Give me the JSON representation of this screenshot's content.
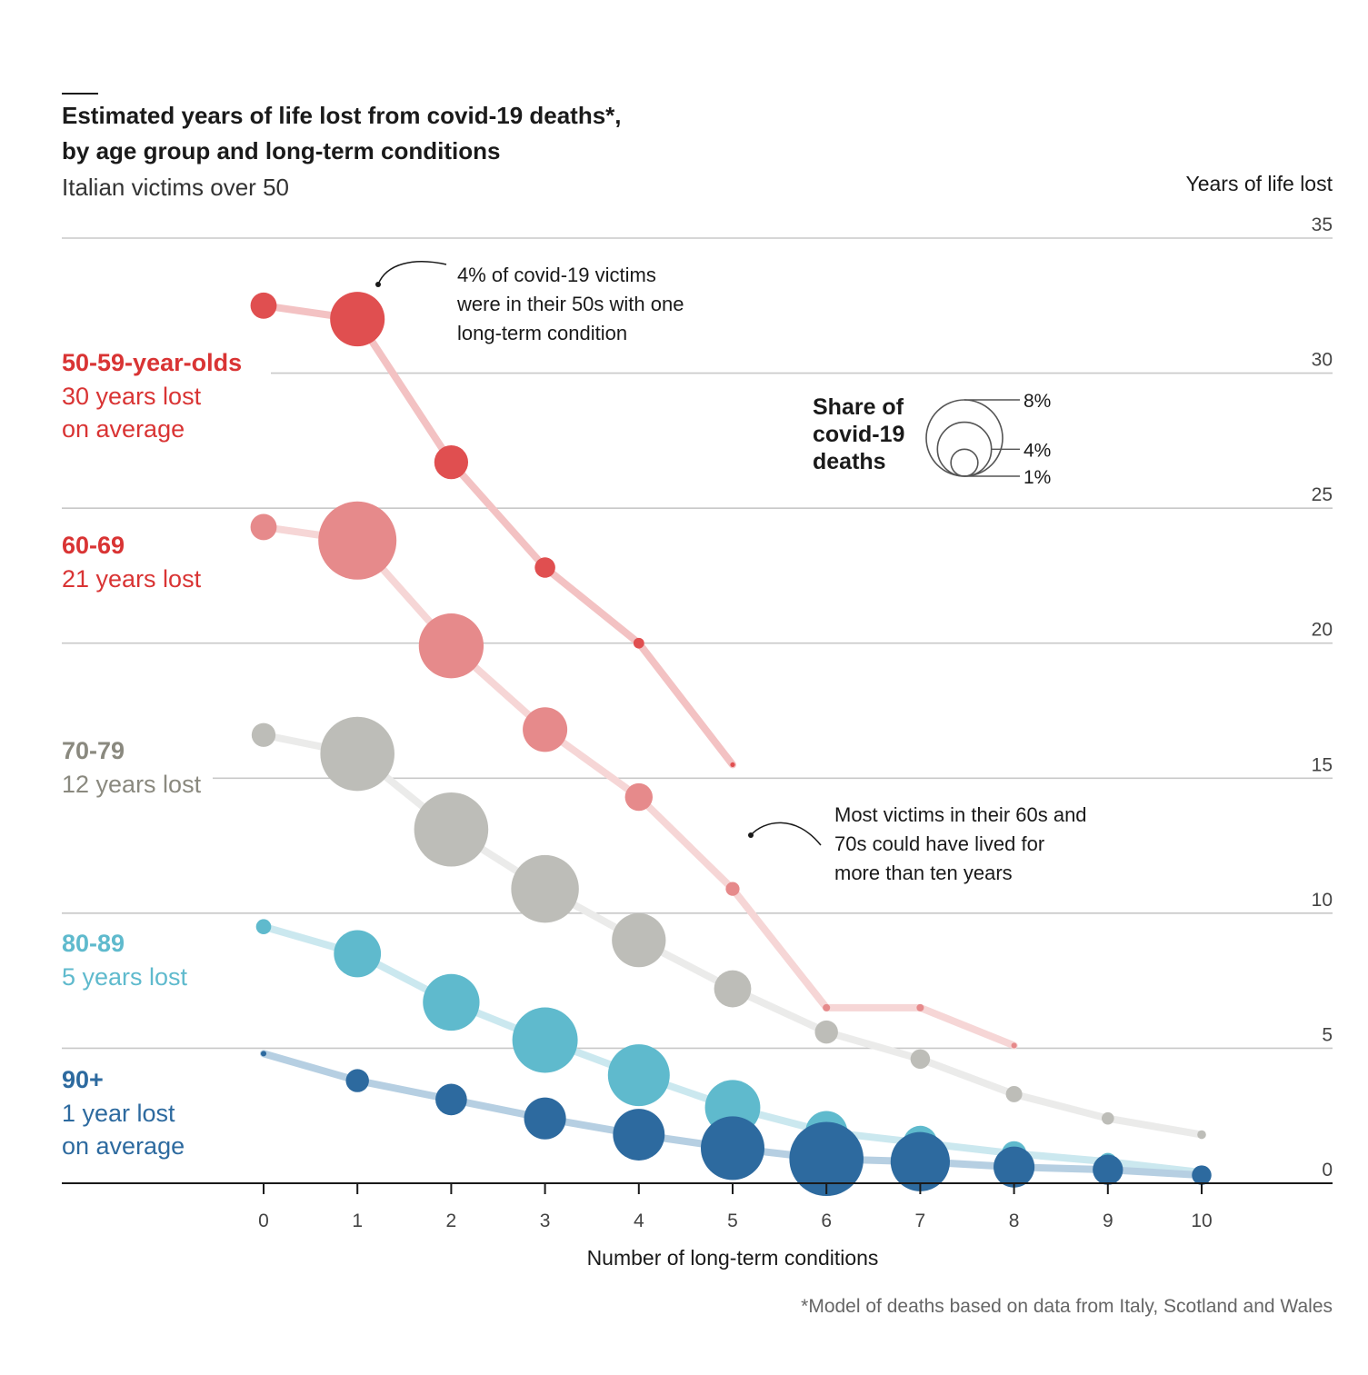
{
  "chart_data": {
    "type": "scatter",
    "title": "Estimated years of life lost from covid-19 deaths*, by age group and long-term conditions",
    "title_lines": [
      "Estimated years of life lost from covid-19 deaths*,",
      "by age group and long-term conditions"
    ],
    "subtitle": "Italian victims over 50",
    "ylabel": "Years of life lost",
    "xlabel": "Number of long-term conditions",
    "ylim": [
      0,
      35
    ],
    "yticks": [
      0,
      5,
      10,
      15,
      20,
      25,
      30,
      35
    ],
    "xlim": [
      0,
      10
    ],
    "xticks": [
      0,
      1,
      2,
      3,
      4,
      5,
      6,
      7,
      8,
      9,
      10
    ],
    "grid": true,
    "bubble_size_meaning": "Share of covid-19 deaths (%)",
    "series": [
      {
        "name": "50-59-year-olds",
        "label_head": "50-59-year-olds",
        "label_lines": [
          "30 years lost",
          "on average"
        ],
        "label_y": 30,
        "color": "#e04f50",
        "line_color": "#f3c2c3",
        "label_color": "#d93434",
        "x": [
          0,
          1,
          2,
          3,
          4,
          5
        ],
        "y": [
          32.5,
          32.0,
          26.7,
          22.8,
          20.0,
          15.5
        ],
        "share": [
          0.9,
          3.9,
          1.5,
          0.55,
          0.15,
          0.03
        ]
      },
      {
        "name": "60-69",
        "label_head": "60-69",
        "label_lines": [
          "21 years lost"
        ],
        "label_y": 23.5,
        "color": "#e68a8b",
        "line_color": "#f6d6d6",
        "label_color": "#d93434",
        "x": [
          0,
          1,
          2,
          3,
          4,
          5,
          6,
          7,
          8
        ],
        "y": [
          24.3,
          23.8,
          19.9,
          16.8,
          14.3,
          10.9,
          6.5,
          6.5,
          5.1
        ],
        "share": [
          0.9,
          8.0,
          5.5,
          2.6,
          1.0,
          0.25,
          0.07,
          0.07,
          0.04
        ]
      },
      {
        "name": "70-79",
        "label_head": "70-79",
        "label_lines": [
          "12 years lost"
        ],
        "label_y": 15.5,
        "color": "#bdbdb8",
        "line_color": "#ebebea",
        "label_color": "#8a897f",
        "x": [
          0,
          1,
          2,
          3,
          4,
          5,
          6,
          7,
          8,
          9,
          10
        ],
        "y": [
          16.6,
          15.9,
          13.1,
          10.9,
          9.0,
          7.2,
          5.6,
          4.6,
          3.3,
          2.4,
          1.8
        ],
        "share": [
          0.75,
          7.2,
          7.2,
          6.0,
          3.8,
          1.8,
          0.7,
          0.5,
          0.35,
          0.2,
          0.1
        ]
      },
      {
        "name": "80-89",
        "label_head": "80-89",
        "label_lines": [
          "5 years lost"
        ],
        "label_y": 8.5,
        "color": "#5fbacd",
        "line_color": "#cbe8ef",
        "label_color": "#5fbacd",
        "x": [
          0,
          1,
          2,
          3,
          4,
          5,
          6,
          7,
          8,
          9,
          10
        ],
        "y": [
          9.5,
          8.5,
          6.7,
          5.3,
          4.0,
          2.8,
          1.9,
          1.5,
          1.1,
          0.8,
          0.4
        ],
        "share": [
          0.3,
          2.9,
          4.2,
          5.6,
          5.0,
          4.0,
          2.3,
          1.5,
          0.8,
          0.4,
          0.15
        ]
      },
      {
        "name": "90+",
        "label_head": "90+",
        "label_lines": [
          "1 year lost",
          "on average"
        ],
        "label_y": 3.0,
        "color": "#2d6a9f",
        "line_color": "#b6cfe2",
        "label_color": "#2d6a9f",
        "x": [
          0,
          1,
          2,
          3,
          4,
          5,
          6,
          7,
          8,
          9,
          10
        ],
        "y": [
          4.8,
          3.8,
          3.1,
          2.4,
          1.8,
          1.3,
          0.9,
          0.8,
          0.6,
          0.5,
          0.3
        ],
        "share": [
          0.04,
          0.7,
          1.3,
          2.3,
          3.5,
          5.3,
          7.2,
          4.6,
          2.2,
          1.2,
          0.5
        ]
      }
    ],
    "legend": {
      "title_lines": [
        "Share of",
        "covid-19",
        "deaths"
      ],
      "values": [
        8,
        4,
        1
      ],
      "value_labels": [
        "8%",
        "4%",
        "1%"
      ],
      "placement": "upper-right-center"
    },
    "annotations": [
      {
        "lines": [
          "4% of covid-19 victims",
          "were in their 50s with one",
          "long-term condition"
        ],
        "points_to": {
          "series": "50-59-year-olds",
          "x": 1
        }
      },
      {
        "lines": [
          "Most victims in their 60s and",
          "70s could have lived for",
          "more than ten years"
        ],
        "points_to": {
          "series": "60-69",
          "x": 5
        }
      }
    ],
    "footnote": "*Model of deaths based on data from Italy, Scotland and Wales"
  }
}
